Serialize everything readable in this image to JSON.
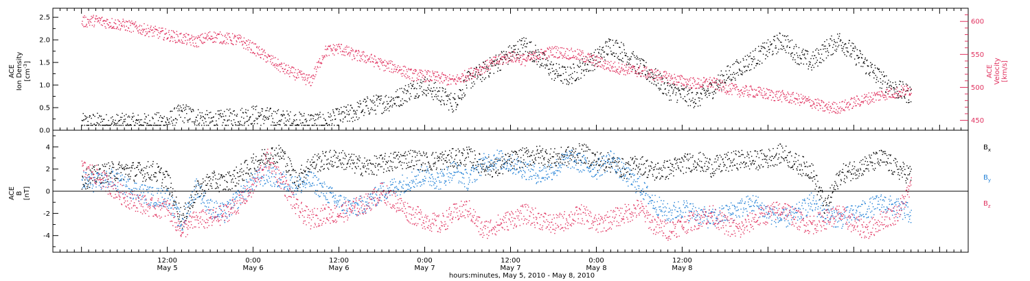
{
  "colors": {
    "black": "#000000",
    "pink": "#e0305e",
    "blue": "#1f7fd6"
  },
  "chart_data": [
    {
      "type": "scatter",
      "panel": "top",
      "ylabel_left": [
        "ACE",
        "Ion Density",
        "[cm",
        "-3",
        "]"
      ],
      "ylabel_right": [
        "ACE",
        "Velocity",
        "[km/s]"
      ],
      "ylim_left": [
        0.0,
        2.7
      ],
      "yticks_left": [
        "0.0",
        "0.5",
        "1.0",
        "1.5",
        "2.0",
        "2.5"
      ],
      "ylim_right": [
        435,
        620
      ],
      "yticks_right": [
        "450",
        "500",
        "550",
        "600"
      ],
      "series": [
        {
          "color": "black",
          "axis": "left",
          "x": [
            0,
            2,
            4,
            6,
            8,
            10,
            12,
            14,
            16,
            18,
            20,
            22,
            24,
            26,
            28,
            30,
            32,
            34,
            36,
            38,
            40,
            42,
            44,
            46,
            48,
            50,
            52,
            54,
            56,
            58,
            60,
            62,
            64,
            66,
            68,
            70,
            72,
            74,
            76,
            78,
            80,
            82,
            84,
            86,
            88,
            90,
            92,
            94,
            96,
            98,
            100,
            102,
            104,
            106,
            108,
            110,
            112,
            114,
            116
          ],
          "y": [
            0.16,
            0.18,
            0.15,
            0.17,
            0.16,
            0.18,
            0.2,
            0.4,
            0.3,
            0.2,
            0.25,
            0.3,
            0.35,
            0.3,
            0.25,
            0.2,
            0.2,
            0.18,
            0.3,
            0.4,
            0.55,
            0.6,
            0.7,
            0.9,
            1.0,
            0.8,
            0.6,
            1.1,
            1.3,
            1.5,
            1.7,
            1.9,
            1.6,
            1.3,
            1.2,
            1.4,
            1.6,
            1.9,
            1.7,
            1.4,
            1.2,
            0.9,
            0.8,
            0.7,
            0.9,
            1.2,
            1.4,
            1.6,
            1.8,
            2.0,
            1.7,
            1.5,
            1.8,
            2.0,
            1.7,
            1.4,
            1.1,
            0.9,
            0.8
          ]
        },
        {
          "color": "pink",
          "axis": "right",
          "x": [
            0,
            2,
            4,
            6,
            8,
            10,
            12,
            14,
            16,
            18,
            20,
            22,
            24,
            26,
            28,
            30,
            32,
            34,
            36,
            38,
            40,
            42,
            44,
            46,
            48,
            50,
            52,
            54,
            56,
            58,
            60,
            62,
            64,
            66,
            68,
            70,
            72,
            74,
            76,
            78,
            80,
            82,
            84,
            86,
            88,
            90,
            92,
            94,
            96,
            98,
            100,
            102,
            104,
            106,
            108,
            110,
            112,
            114,
            116
          ],
          "y": [
            600,
            602,
            598,
            595,
            590,
            585,
            580,
            575,
            570,
            578,
            575,
            572,
            560,
            545,
            530,
            520,
            510,
            555,
            560,
            550,
            545,
            535,
            530,
            520,
            518,
            515,
            510,
            520,
            530,
            540,
            548,
            542,
            550,
            555,
            552,
            548,
            540,
            532,
            528,
            525,
            520,
            515,
            510,
            506,
            508,
            500,
            495,
            494,
            490,
            487,
            483,
            478,
            470,
            470,
            478,
            484,
            490,
            493,
            497
          ]
        }
      ]
    },
    {
      "type": "scatter",
      "panel": "bottom",
      "ylabel_left": [
        "ACE",
        "B",
        "[nT]"
      ],
      "ylim_left": [
        -5.5,
        5.5
      ],
      "yticks_left": [
        "-4",
        "-2",
        "0",
        "2",
        "4"
      ],
      "legend_position": "right",
      "series": [
        {
          "name": "B",
          "sub": "x",
          "color": "black",
          "x": [
            0,
            2,
            4,
            6,
            8,
            10,
            12,
            14,
            16,
            18,
            20,
            22,
            24,
            26,
            28,
            30,
            32,
            34,
            36,
            38,
            40,
            42,
            44,
            46,
            48,
            50,
            52,
            54,
            56,
            58,
            60,
            62,
            64,
            66,
            68,
            70,
            72,
            74,
            76,
            78,
            80,
            82,
            84,
            86,
            88,
            90,
            92,
            94,
            96,
            98,
            100,
            102,
            104,
            106,
            108,
            110,
            112,
            114,
            116
          ],
          "y": [
            1.0,
            1.5,
            1.8,
            1.9,
            1.8,
            1.9,
            1.0,
            -2.5,
            0.0,
            1.0,
            0.8,
            1.5,
            2.5,
            3.3,
            3.4,
            1.0,
            2.5,
            2.8,
            3.0,
            2.5,
            2.2,
            2.5,
            2.8,
            3.0,
            2.7,
            2.8,
            3.0,
            3.2,
            2.4,
            2.1,
            2.8,
            3.1,
            3.3,
            3.0,
            3.2,
            3.5,
            2.8,
            2.6,
            2.0,
            2.5,
            1.8,
            2.0,
            2.5,
            2.8,
            2.2,
            2.6,
            2.9,
            2.8,
            3.0,
            3.5,
            2.5,
            2.0,
            -1.5,
            1.5,
            2.0,
            2.5,
            3.0,
            2.0,
            1.5
          ]
        },
        {
          "name": "B",
          "sub": "y",
          "color": "blue",
          "x": [
            0,
            2,
            4,
            6,
            8,
            10,
            12,
            14,
            16,
            18,
            20,
            22,
            24,
            26,
            28,
            30,
            32,
            34,
            36,
            38,
            40,
            42,
            44,
            46,
            48,
            50,
            52,
            54,
            56,
            58,
            60,
            62,
            64,
            66,
            68,
            70,
            72,
            74,
            76,
            78,
            80,
            82,
            84,
            86,
            88,
            90,
            92,
            94,
            96,
            98,
            100,
            102,
            104,
            106,
            108,
            110,
            112,
            114,
            116
          ],
          "y": [
            1.0,
            0.8,
            1.2,
            0.5,
            0.0,
            -0.5,
            -0.5,
            -3.0,
            0.5,
            -1.5,
            -2.0,
            -0.5,
            1.0,
            1.5,
            1.0,
            0.5,
            1.0,
            0.0,
            -1.0,
            -1.5,
            -1.0,
            0.0,
            0.5,
            1.0,
            1.5,
            1.0,
            2.0,
            1.0,
            2.5,
            3.0,
            2.5,
            2.0,
            1.5,
            2.0,
            3.0,
            2.5,
            2.0,
            3.0,
            1.5,
            0.5,
            -1.0,
            -2.0,
            -1.5,
            -2.0,
            -2.5,
            -2.0,
            -1.5,
            -1.0,
            -2.0,
            -2.5,
            -2.0,
            -1.0,
            -2.0,
            -2.5,
            -2.0,
            -1.5,
            -1.0,
            -1.5,
            -2.0
          ]
        },
        {
          "name": "B",
          "sub": "z",
          "color": "pink",
          "x": [
            0,
            2,
            4,
            6,
            8,
            10,
            12,
            14,
            16,
            18,
            20,
            22,
            24,
            26,
            28,
            30,
            32,
            34,
            36,
            38,
            40,
            42,
            44,
            46,
            48,
            50,
            52,
            54,
            56,
            58,
            60,
            62,
            64,
            66,
            68,
            70,
            72,
            74,
            76,
            78,
            80,
            82,
            84,
            86,
            88,
            90,
            92,
            94,
            96,
            98,
            100,
            102,
            104,
            106,
            108,
            110,
            112,
            114,
            116
          ],
          "y": [
            2.0,
            1.5,
            0.5,
            -0.5,
            -1.0,
            -1.5,
            -1.5,
            -3.5,
            -2.5,
            -2.5,
            -2.0,
            -1.0,
            0.5,
            3.0,
            1.0,
            -1.5,
            -2.5,
            -2.0,
            -2.0,
            -1.5,
            -1.0,
            0.0,
            -1.0,
            -2.0,
            -2.5,
            -3.0,
            -2.0,
            -1.5,
            -3.5,
            -3.0,
            -2.5,
            -2.0,
            -2.5,
            -3.0,
            -2.5,
            -2.0,
            -3.0,
            -2.5,
            -2.0,
            -1.5,
            -3.0,
            -3.5,
            -3.0,
            -2.5,
            -2.0,
            -3.0,
            -3.5,
            -2.5,
            -2.0,
            -1.5,
            -2.5,
            -3.0,
            -2.5,
            -2.0,
            -3.0,
            -3.5,
            -2.5,
            -2.0,
            0.5
          ]
        }
      ]
    }
  ],
  "x_axis": {
    "range_hours": [
      -4,
      124
    ],
    "ticks": [
      {
        "hour": 12,
        "time": "12:00",
        "date": "May 5"
      },
      {
        "hour": 24,
        "time": "0:00",
        "date": "May 6"
      },
      {
        "hour": 36,
        "time": "12:00",
        "date": "May 6"
      },
      {
        "hour": 48,
        "time": "0:00",
        "date": "May 7"
      },
      {
        "hour": 60,
        "time": "12:00",
        "date": "May 7"
      },
      {
        "hour": 72,
        "time": "0:00",
        "date": "May 8"
      },
      {
        "hour": 84,
        "time": "12:00",
        "date": "May 8"
      }
    ],
    "label": "hours:minutes, May  5, 2010 - May  8, 2010"
  }
}
